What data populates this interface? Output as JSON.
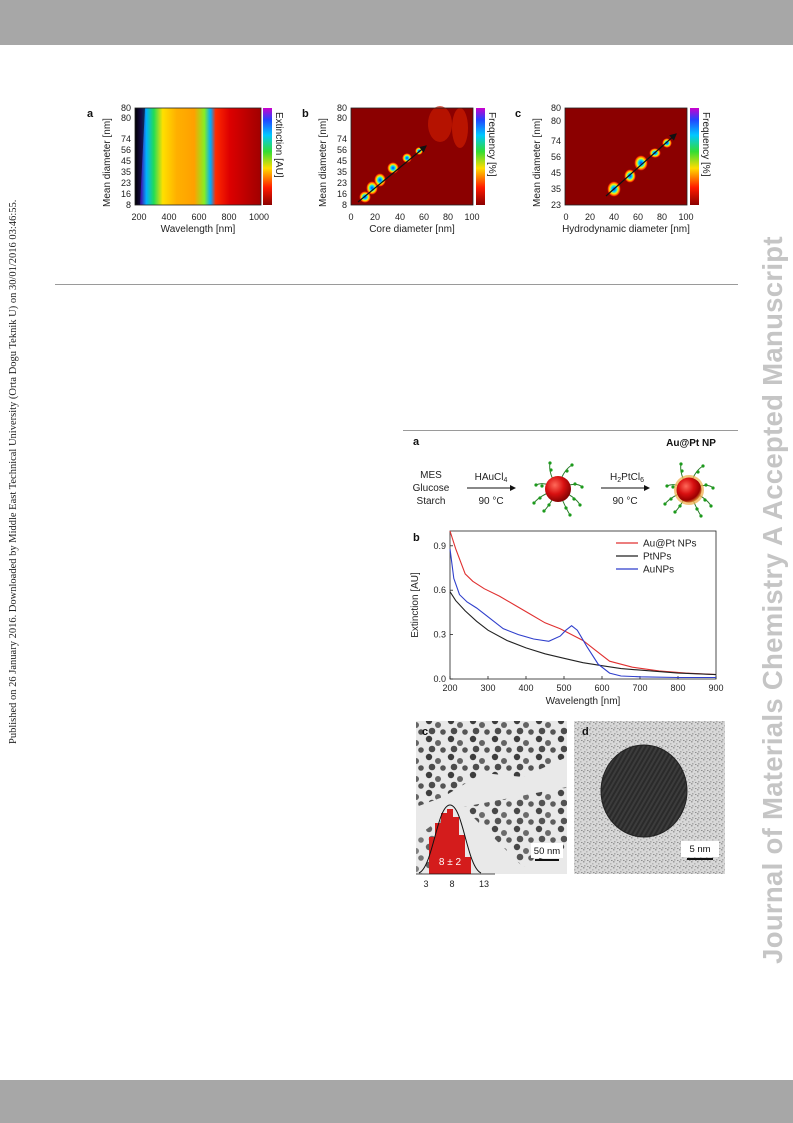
{
  "side_note": "Published on 26 January 2016. Downloaded by Middle East Technical University (Orta Dogu Teknik U) on 30/01/2016 03:46:55.",
  "watermark": "Journal of Materials Chemistry A Accepted Manuscript",
  "figure_top": {
    "panels": [
      {
        "letter": "a",
        "xlabel": "Wavelength [nm]",
        "ylabel": "Mean diameter [nm]",
        "colorbar_label": "Extinction [AU]",
        "xticks": [
          "200",
          "400",
          "600",
          "800",
          "1000"
        ],
        "yticks": [
          "8",
          "16",
          "23",
          "35",
          "45",
          "56",
          "74",
          "80",
          "80"
        ]
      },
      {
        "letter": "b",
        "xlabel": "Core diameter [nm]",
        "ylabel": "Mean diameter [nm]",
        "colorbar_label": "Frequency [%]",
        "xticks": [
          "0",
          "20",
          "40",
          "60",
          "80",
          "100"
        ],
        "yticks": [
          "8",
          "16",
          "23",
          "35",
          "45",
          "56",
          "74",
          "80",
          "80"
        ]
      },
      {
        "letter": "c",
        "xlabel": "Hydrodynamic diameter [nm]",
        "ylabel": "Mean diameter [nm]",
        "colorbar_label": "Frequency [%]",
        "xticks": [
          "0",
          "20",
          "40",
          "60",
          "80",
          "100"
        ],
        "yticks": [
          "23",
          "35",
          "45",
          "56",
          "74",
          "80",
          "80"
        ]
      }
    ]
  },
  "figure_bottom": {
    "panel_a": {
      "letter": "a",
      "title": "Au@Pt NP",
      "reagents": [
        "MES",
        "Glucose",
        "Starch"
      ],
      "step1_reagent": "HAuCl4",
      "step1_temp": "90 °C",
      "step2_reagent": "H2PtCl6",
      "step2_temp": "90 °C"
    },
    "panel_c": {
      "letter": "c",
      "scale_bar": "50 nm",
      "histogram_label": "8 ± 2",
      "xticks": [
        "3",
        "8",
        "13"
      ]
    },
    "panel_d": {
      "letter": "d",
      "scale_bar": "5 nm"
    }
  },
  "chart_data": {
    "type": "line",
    "panel": "b",
    "xlabel": "Wavelength [nm]",
    "ylabel": "Extinction [AU]",
    "xlim": [
      200,
      900
    ],
    "ylim": [
      0.0,
      1.0
    ],
    "xticks": [
      200,
      300,
      400,
      500,
      600,
      700,
      800,
      900
    ],
    "yticks": [
      0.0,
      0.3,
      0.6,
      0.9
    ],
    "legend_position": "top-right",
    "grid": false,
    "series": [
      {
        "name": "Au@Pt NPs",
        "color": "#e03030",
        "x": [
          200,
          215,
          240,
          260,
          290,
          330,
          370,
          410,
          450,
          490,
          520,
          550,
          580,
          620,
          680,
          750,
          820,
          900
        ],
        "y": [
          1.0,
          0.88,
          0.71,
          0.66,
          0.61,
          0.56,
          0.5,
          0.44,
          0.38,
          0.34,
          0.3,
          0.26,
          0.2,
          0.12,
          0.08,
          0.055,
          0.04,
          0.03
        ]
      },
      {
        "name": "PtNPs",
        "color": "#222222",
        "x": [
          200,
          215,
          240,
          270,
          300,
          350,
          400,
          450,
          500,
          550,
          600,
          650,
          700,
          800,
          900
        ],
        "y": [
          0.59,
          0.53,
          0.46,
          0.39,
          0.33,
          0.26,
          0.21,
          0.17,
          0.14,
          0.11,
          0.09,
          0.07,
          0.06,
          0.04,
          0.03
        ]
      },
      {
        "name": "AuNPs",
        "color": "#2f3fcc",
        "x": [
          200,
          210,
          225,
          245,
          270,
          300,
          340,
          380,
          420,
          460,
          490,
          505,
          520,
          535,
          560,
          590,
          620,
          650,
          700,
          800,
          900
        ],
        "y": [
          0.88,
          0.68,
          0.57,
          0.52,
          0.48,
          0.42,
          0.34,
          0.3,
          0.27,
          0.255,
          0.29,
          0.33,
          0.36,
          0.33,
          0.22,
          0.1,
          0.04,
          0.02,
          0.015,
          0.01,
          0.01
        ]
      }
    ]
  }
}
